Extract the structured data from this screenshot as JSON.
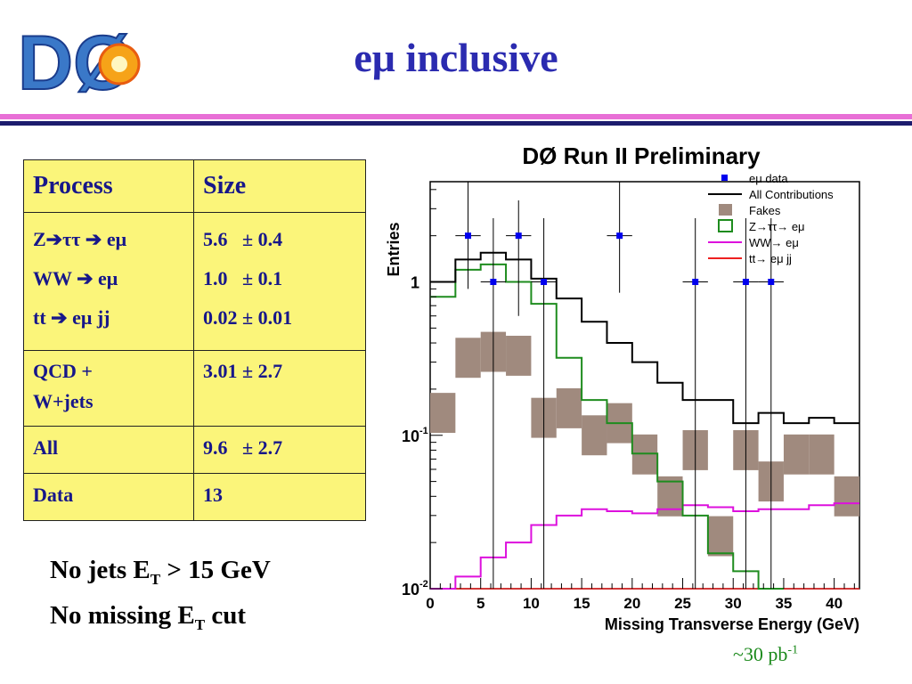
{
  "slide": {
    "title": "eμ inclusive",
    "logo_text": "DØ",
    "table": {
      "headers": [
        "Process",
        "Size"
      ],
      "rows": [
        {
          "process": [
            "Z➔ττ ➔ eμ",
            "WW ➔ eμ",
            "tt ➔ eμ jj"
          ],
          "size": [
            "5.6   ± 0.4",
            "1.0   ± 0.1",
            "0.02 ± 0.01"
          ]
        },
        {
          "process": [
            "QCD +",
            "W+jets"
          ],
          "size": [
            "3.01 ± 2.7"
          ]
        },
        {
          "process": [
            "All"
          ],
          "size": [
            "9.6   ± 2.7"
          ]
        },
        {
          "process": [
            "Data"
          ],
          "size": [
            "13"
          ]
        }
      ]
    },
    "notes": {
      "line1_a": "No jets E",
      "line1_sub": "T",
      "line1_b": " > 15 GeV",
      "line2_a": "No missing E",
      "line2_sub": "T",
      "line2_b": " cut"
    },
    "luminosity": {
      "text": "~30 pb",
      "sup": "-1"
    }
  },
  "colors": {
    "title": "#2b2bb0",
    "table_bg": "#fbf57a",
    "data": "#0000ee",
    "all": "#000000",
    "fakes": "#a08a7e",
    "ztautau": "#1e8c1e",
    "ww": "#dd10dd",
    "tt": "#ee2020",
    "lumi": "#1c8a1c"
  },
  "chart_data": {
    "type": "line",
    "title": "DØ Run II Preliminary",
    "xlabel": "Missing Transverse Energy (GeV)",
    "ylabel": "Entries",
    "xlim": [
      0,
      42.5
    ],
    "ylim": [
      0.01,
      4.5
    ],
    "yscale": "log",
    "xticks": [
      0,
      5,
      10,
      15,
      20,
      25,
      30,
      35,
      40
    ],
    "yticks": [
      {
        "value": 0.01,
        "base": "10",
        "exp": "-2"
      },
      {
        "value": 0.1,
        "base": "10",
        "exp": "-1"
      },
      {
        "value": 1,
        "base": "1",
        "exp": ""
      }
    ],
    "bin_edges": [
      0,
      2.5,
      5,
      7.5,
      10,
      12.5,
      15,
      17.5,
      20,
      22.5,
      25,
      27.5,
      30,
      32.5,
      35,
      37.5,
      40,
      42.5
    ],
    "legend_position": "top-right",
    "series": [
      {
        "name": "eμ data",
        "kind": "points",
        "points": [
          {
            "x": 3.75,
            "y": 2.0,
            "xerr": 1.25,
            "ylo": 0.9,
            "yhi": 4.5
          },
          {
            "x": 6.25,
            "y": 1.0,
            "xerr": 1.25,
            "ylo": 0.01,
            "yhi": 2.6
          },
          {
            "x": 8.75,
            "y": 2.0,
            "xerr": 1.25,
            "ylo": 0.6,
            "yhi": 3.4
          },
          {
            "x": 11.25,
            "y": 1.0,
            "xerr": 1.25,
            "ylo": 0.01,
            "yhi": 2.6
          },
          {
            "x": 18.75,
            "y": 2.0,
            "xerr": 1.25,
            "ylo": 0.85,
            "yhi": 4.5
          },
          {
            "x": 26.25,
            "y": 1.0,
            "xerr": 1.25,
            "ylo": 0.01,
            "yhi": 2.6
          },
          {
            "x": 31.25,
            "y": 1.0,
            "xerr": 1.25,
            "ylo": 0.01,
            "yhi": 2.6
          },
          {
            "x": 33.75,
            "y": 1.0,
            "xerr": 1.25,
            "ylo": 0.01,
            "yhi": 2.6
          }
        ]
      },
      {
        "name": "All Contributions",
        "kind": "step",
        "values": [
          1.0,
          1.4,
          1.55,
          1.4,
          1.05,
          0.78,
          0.55,
          0.4,
          0.3,
          0.22,
          0.17,
          0.17,
          0.12,
          0.14,
          0.12,
          0.13,
          0.12
        ]
      },
      {
        "name": "Fakes",
        "kind": "box",
        "values": [
          0.14,
          0.32,
          0.35,
          0.33,
          0.13,
          0.15,
          0.1,
          0.12,
          0.075,
          0.04,
          0.08,
          0.022,
          0.08,
          0.05,
          0.075,
          0.075,
          0.04
        ],
        "half_height_factor": 1.35
      },
      {
        "name": "Z→ττ→ eμ",
        "kind": "step",
        "values": [
          0.8,
          1.2,
          1.3,
          1.0,
          0.72,
          0.32,
          0.17,
          0.12,
          0.076,
          0.05,
          0.03,
          0.017,
          0.013,
          0.01
        ]
      },
      {
        "name": "WW→ eμ",
        "kind": "step",
        "values": [
          0.0085,
          0.012,
          0.016,
          0.02,
          0.026,
          0.03,
          0.033,
          0.032,
          0.031,
          0.033,
          0.035,
          0.034,
          0.032,
          0.033,
          0.033,
          0.035,
          0.036
        ]
      },
      {
        "name": "tt→ eμ jj",
        "kind": "step",
        "values": [
          0.0095,
          0.0095,
          0.0095,
          0.0095,
          0.0095,
          0.0095,
          0.0095,
          0.0095,
          0.0095,
          0.0095,
          0.0095,
          0.0095,
          0.0095,
          0.0095,
          0.0095,
          0.0095,
          0.0095
        ]
      }
    ]
  }
}
